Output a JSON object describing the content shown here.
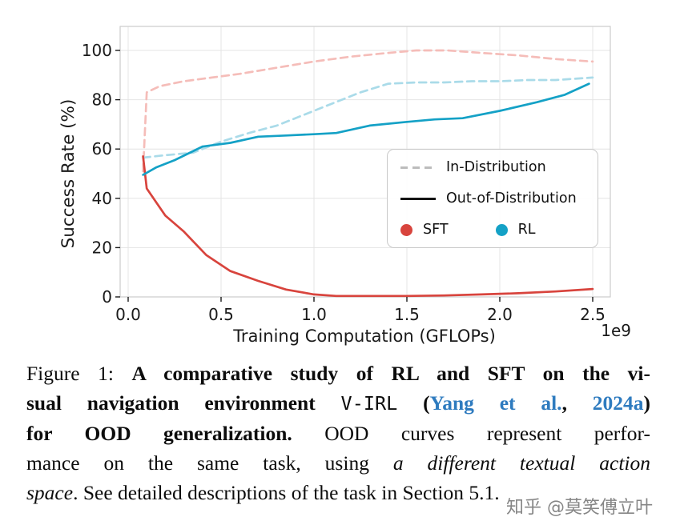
{
  "chart_data": {
    "type": "line",
    "title": "",
    "xlabel": "Training Computation (GFLOPs)",
    "ylabel": "Success Rate (%)",
    "x_offset_text": "1e9",
    "xticks": [
      "0.0",
      "0.5",
      "1.0",
      "1.5",
      "2.0",
      "2.5"
    ],
    "yticks": [
      "0",
      "20",
      "40",
      "60",
      "80",
      "100"
    ],
    "xlim": [
      -0.04,
      2.6
    ],
    "ylim": [
      0,
      110
    ],
    "grid": true,
    "legend_position": "center right",
    "legend": {
      "in_dist": "In-Distribution",
      "out_dist": "Out-of-Distribution",
      "sft": "SFT",
      "rl": "RL"
    },
    "colors": {
      "sft": "#d8443d",
      "sft_id": "#f5bdb9",
      "rl": "#14a1c6",
      "rl_id": "#aadbe9",
      "legend_dash": "#bcbcbc",
      "legend_solid": "#141414",
      "grid": "#e4e4e4",
      "spine": "#cccccc",
      "text": "#1a1a1a"
    },
    "series": [
      {
        "name": "SFT In-Distribution",
        "style": "dashed",
        "color": "sft_id",
        "points": [
          [
            0.08,
            51
          ],
          [
            0.1,
            83
          ],
          [
            0.17,
            85.5
          ],
          [
            0.3,
            87.5
          ],
          [
            0.45,
            89
          ],
          [
            0.6,
            90.5
          ],
          [
            0.8,
            93
          ],
          [
            1.0,
            95.5
          ],
          [
            1.2,
            97.5
          ],
          [
            1.4,
            99
          ],
          [
            1.55,
            100
          ],
          [
            1.72,
            100
          ],
          [
            1.9,
            99
          ],
          [
            2.1,
            98
          ],
          [
            2.3,
            96.5
          ],
          [
            2.5,
            95.5
          ]
        ]
      },
      {
        "name": "RL In-Distribution",
        "style": "dashed",
        "color": "rl_id",
        "points": [
          [
            0.08,
            56.5
          ],
          [
            0.2,
            57.5
          ],
          [
            0.35,
            58.5
          ],
          [
            0.5,
            63
          ],
          [
            0.65,
            66.5
          ],
          [
            0.8,
            69.5
          ],
          [
            0.95,
            74
          ],
          [
            1.1,
            78.5
          ],
          [
            1.25,
            83
          ],
          [
            1.4,
            86.5
          ],
          [
            1.55,
            87
          ],
          [
            1.7,
            87
          ],
          [
            1.85,
            87.5
          ],
          [
            2.0,
            87.5
          ],
          [
            2.15,
            88
          ],
          [
            2.3,
            88
          ],
          [
            2.5,
            89
          ]
        ]
      },
      {
        "name": "SFT Out-of-Distribution",
        "style": "solid",
        "color": "sft",
        "points": [
          [
            0.08,
            57
          ],
          [
            0.1,
            44
          ],
          [
            0.2,
            33
          ],
          [
            0.3,
            26.5
          ],
          [
            0.42,
            17
          ],
          [
            0.55,
            10.5
          ],
          [
            0.7,
            6.5
          ],
          [
            0.85,
            3
          ],
          [
            1.0,
            1
          ],
          [
            1.12,
            0.4
          ],
          [
            1.3,
            0.4
          ],
          [
            1.5,
            0.4
          ],
          [
            1.7,
            0.6
          ],
          [
            1.9,
            1
          ],
          [
            2.1,
            1.5
          ],
          [
            2.3,
            2.2
          ],
          [
            2.5,
            3.2
          ]
        ]
      },
      {
        "name": "RL Out-of-Distribution",
        "style": "solid",
        "color": "rl",
        "points": [
          [
            0.08,
            49.5
          ],
          [
            0.15,
            52.5
          ],
          [
            0.25,
            55.5
          ],
          [
            0.4,
            61
          ],
          [
            0.55,
            62.5
          ],
          [
            0.7,
            65
          ],
          [
            0.85,
            65.5
          ],
          [
            1.0,
            66
          ],
          [
            1.12,
            66.5
          ],
          [
            1.3,
            69.5
          ],
          [
            1.5,
            71
          ],
          [
            1.65,
            72
          ],
          [
            1.8,
            72.5
          ],
          [
            2.0,
            75.5
          ],
          [
            2.2,
            79
          ],
          [
            2.35,
            82
          ],
          [
            2.48,
            86.5
          ]
        ]
      }
    ]
  },
  "caption": {
    "link_color": "#2e7bbf",
    "full_text": "Figure 1: A comparative study of RL and SFT on the visual navigation environment V-IRL (Yang et al., 2024a) for OOD generalization. OOD curves represent performance on the same task, using a different textual action space. See detailed descriptions of the task in Section 5.1.",
    "lines": [
      [
        {
          "t": "Figure 1: ",
          "s": "n"
        },
        {
          "t": "A comparative study of RL and SFT on the vi-",
          "s": "b"
        }
      ],
      [
        {
          "t": "sual navigation environment ",
          "s": "b"
        },
        {
          "t": "V-IRL",
          "s": "m"
        },
        {
          "t": " (",
          "s": "b"
        },
        {
          "t": "Yang et al.",
          "s": "l"
        },
        {
          "t": ", ",
          "s": "b"
        },
        {
          "t": "2024a",
          "s": "l"
        },
        {
          "t": ")",
          "s": "b"
        }
      ],
      [
        {
          "t": "for OOD generalization.",
          "s": "b"
        },
        {
          "t": " OOD curves represent perfor-",
          "s": "n"
        }
      ],
      [
        {
          "t": "mance on the same task, using ",
          "s": "n"
        },
        {
          "t": "a different textual action",
          "s": "i"
        }
      ],
      [
        {
          "t": "space",
          "s": "i"
        },
        {
          "t": ". See detailed descriptions of the task in Section 5.1.",
          "s": "n"
        }
      ]
    ]
  },
  "watermark": {
    "text": "知乎 @莫笑傅立叶"
  }
}
